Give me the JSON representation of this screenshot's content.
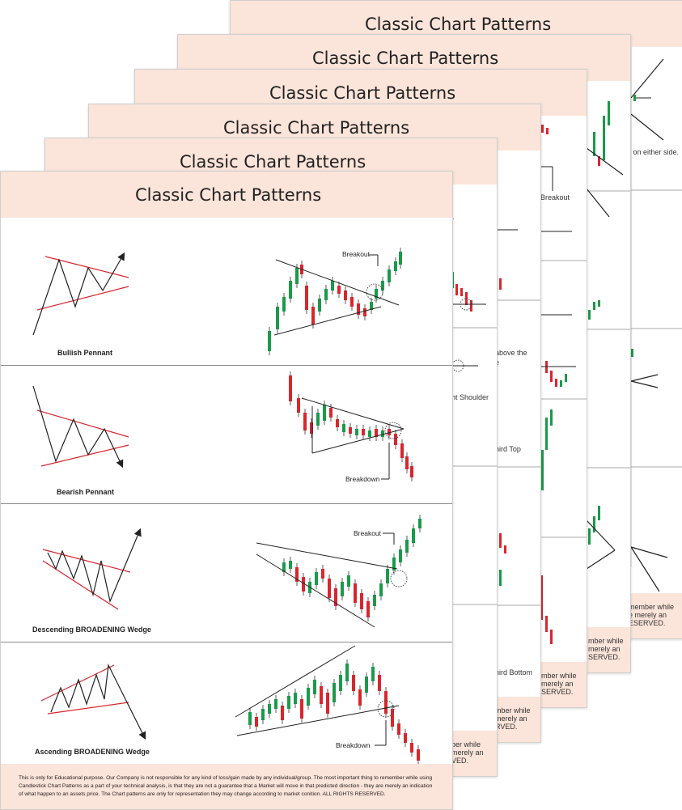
{
  "sheets": [
    {
      "title": "Classic Chart Patterns"
    },
    {
      "title": "Classic Chart Patterns"
    },
    {
      "title": "Classic Chart Patterns"
    },
    {
      "title": "Classic Chart Patterns"
    },
    {
      "title": "Classic Chart Patterns"
    },
    {
      "title": "Classic Chart Patterns"
    }
  ],
  "fragments": {
    "either_side": "n on either side.",
    "breakout_b1": "Breakout",
    "r": "r",
    "above_the": "above the",
    "e": "e",
    "ht_shoulder": "ht Shoulder",
    "hird_top": "hird Top",
    "hird_bottom": "hird Bottom",
    "f_member_while_1": "member while",
    "f_merely_an_1": "e merely an",
    "f_reserved_1": "ESERVED.",
    "f_member_while_2": "mber while",
    "f_merely_an_2": "merely an",
    "f_reserved_2": "SERVED.",
    "f_member_while_3": "mber while",
    "f_merely_an_3": "merely an",
    "f_reserved_3": "SERVED.",
    "f_member_while_4": "mber while",
    "f_merely_an_4": "merely an",
    "f_reserved_4": "RVED.",
    "f_member_while_5": "ber while",
    "f_merely_an_5": "merely an",
    "f_reserved_5": "VED."
  },
  "patterns": [
    {
      "name": "Bullish Pennant",
      "annotation": "Breakout"
    },
    {
      "name": "Bearish Pennant",
      "annotation": "Breakdown"
    },
    {
      "name": "Descending BROADENING Wedge",
      "annotation": "Breakout"
    },
    {
      "name": "Ascending BROADENING Wedge",
      "annotation": "Breakdown"
    }
  ],
  "colors": {
    "header": "#fbe4d9",
    "bull": "#1a9a4a",
    "bear": "#d9262e",
    "trend": "#d9262e"
  },
  "footer_text": "This is only for Educational purpose. Our Company is not responsible for any kind of loss/gain made by any individual/group. The most important thing to remember while using Candlestick Chart Patterns as a part of your technical analysis, is that they are not a guarantee that a Market will move in that predicted direction - they are merely an indication of what happen to an assets price. The Chart patterns are only for representation they may change according to market conition. ALL RIGHTS RESERVED."
}
